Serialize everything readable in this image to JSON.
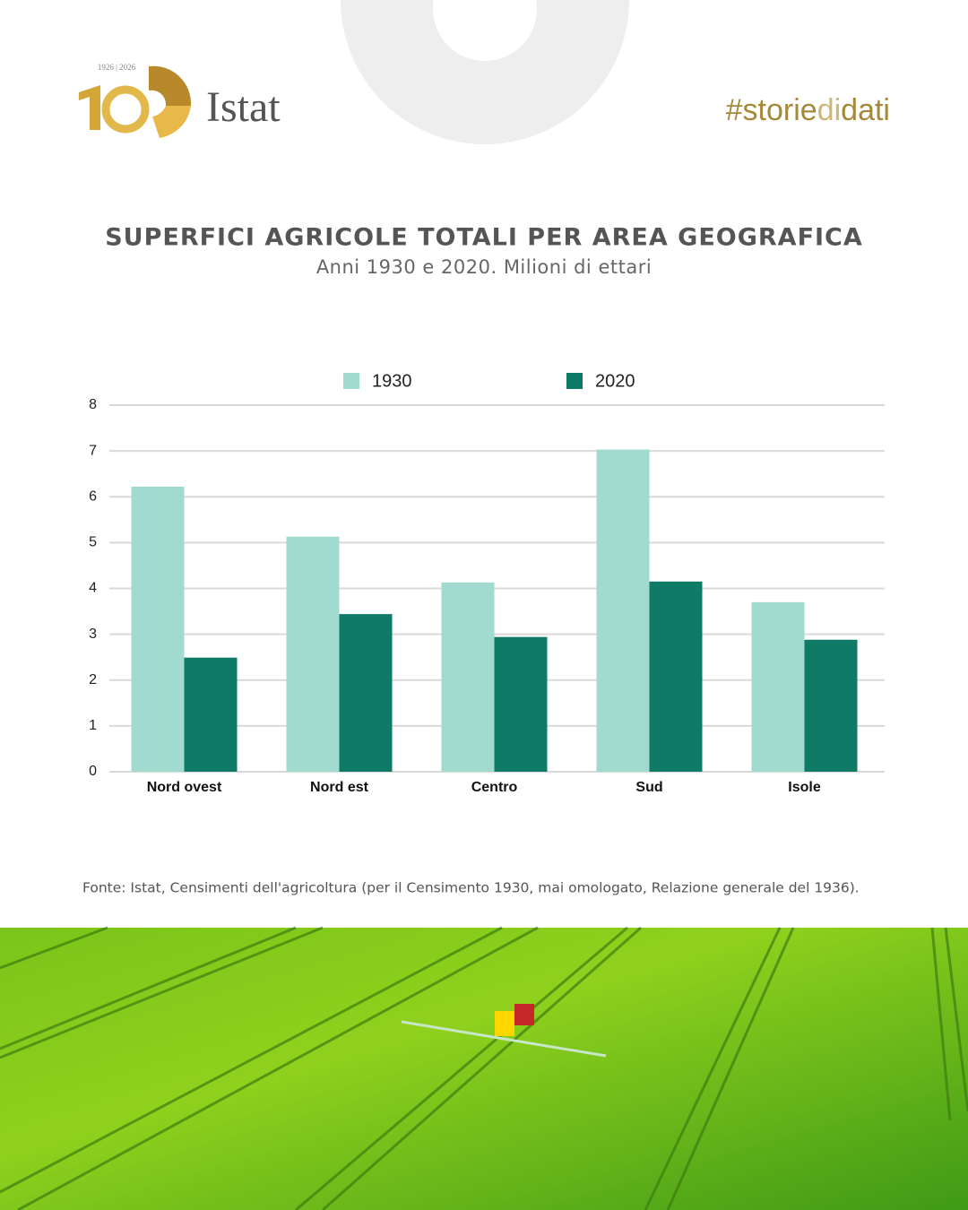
{
  "header": {
    "logo_years": "1926 | 2026",
    "brand": "Istat",
    "hashtag": [
      "#storie",
      "di",
      "dati"
    ]
  },
  "chart_data": {
    "type": "bar",
    "title": "SUPERFICI AGRICOLE TOTALI PER AREA GEOGRAFICA",
    "subtitle": "Anni 1930 e 2020. Milioni di ettari",
    "categories": [
      "Nord ovest",
      "Nord est",
      "Centro",
      "Sud",
      "Isole"
    ],
    "series": [
      {
        "name": "1930",
        "color": "#a1dace",
        "values": [
          6.22,
          5.13,
          4.13,
          7.03,
          3.7
        ]
      },
      {
        "name": "2020",
        "color": "#0f7a66",
        "values": [
          2.49,
          3.44,
          2.94,
          4.15,
          2.88
        ]
      }
    ],
    "ylim": [
      0,
      8
    ],
    "yticks": [
      0,
      1,
      2,
      3,
      4,
      5,
      6,
      7,
      8
    ],
    "grid": true,
    "source": "Fonte: Istat, Censimenti dell'agricoltura (per il Censimento 1930, mai omologato, Relazione generale del 1936)."
  }
}
